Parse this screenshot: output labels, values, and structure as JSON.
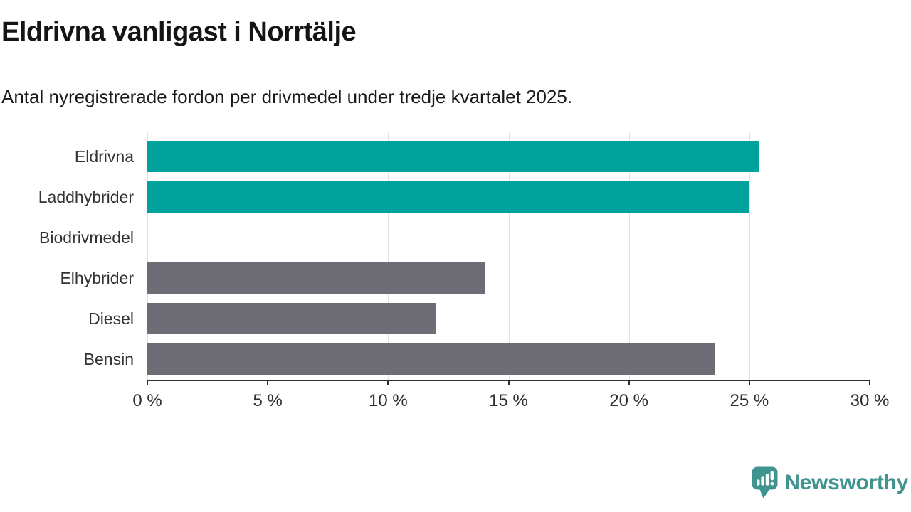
{
  "title": "Eldrivna vanligast i Norrtälje",
  "subtitle": "Antal nyregistrerade fordon per drivmedel under tredje kvartalet 2025.",
  "chart_data": {
    "type": "bar",
    "orientation": "horizontal",
    "title": "Eldrivna vanligast i Norrtälje",
    "subtitle": "Antal nyregistrerade fordon per drivmedel under tredje kvartalet 2025.",
    "categories": [
      "Eldrivna",
      "Laddhybrider",
      "Biodrivmedel",
      "Elhybrider",
      "Diesel",
      "Bensin"
    ],
    "values": [
      25.4,
      25.0,
      0,
      14.0,
      12.0,
      23.6
    ],
    "unit": "%",
    "xlim": [
      0,
      30
    ],
    "x_ticks": [
      0,
      5,
      10,
      15,
      20,
      25,
      30
    ],
    "x_tick_labels": [
      "0 %",
      "5 %",
      "10 %",
      "15 %",
      "20 %",
      "25 %",
      "30 %"
    ],
    "bar_colors": [
      "#00a39c",
      "#00a39c",
      "#6e6c74",
      "#6e6c74",
      "#6e6c74",
      "#6e6c74"
    ],
    "grid": true,
    "legend": "none"
  },
  "colors": {
    "highlight_bar": "#00a39c",
    "default_bar": "#6e6c74",
    "gridline": "#e2e2e2",
    "axis": "#2d2d2d",
    "brand_teal": "#3f948f"
  },
  "branding": {
    "wordmark": "Newsworthy",
    "icon": "newsworthy-speech-bubble-chart-icon"
  }
}
